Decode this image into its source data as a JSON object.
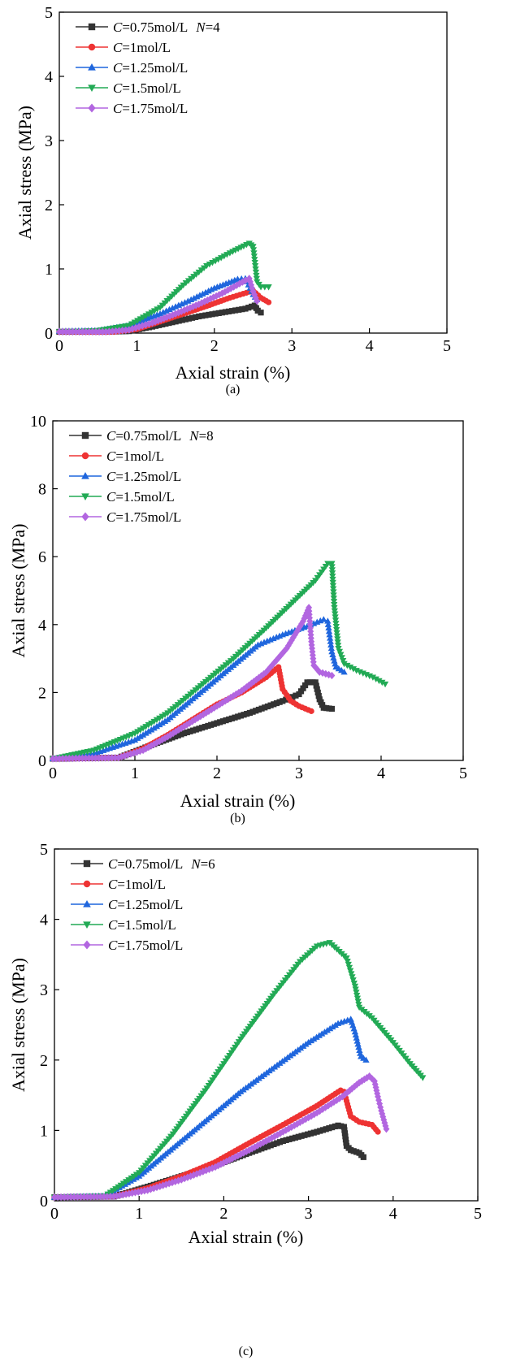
{
  "chart_data": [
    {
      "type": "line",
      "panel_label": "(a)",
      "xlabel": "Axial strain (%)",
      "ylabel": "Axial stress (MPa)",
      "xlim": [
        0,
        5
      ],
      "ylim": [
        0,
        5
      ],
      "xticks": [
        0,
        1,
        2,
        3,
        4,
        5
      ],
      "yticks": [
        0,
        1,
        2,
        3,
        4,
        5
      ],
      "legend_position": "top-left",
      "series": [
        {
          "name": "C=0.75mol/L  N=4",
          "legend": {
            "prefix": "C",
            "value": "=0.75mol/L",
            "extra_prefix": "N",
            "extra_value": "=4"
          },
          "color": "#333333",
          "marker": "square",
          "points": [
            [
              0,
              0.02
            ],
            [
              0.6,
              0.02
            ],
            [
              0.9,
              0.03
            ],
            [
              1.2,
              0.1
            ],
            [
              1.5,
              0.18
            ],
            [
              1.8,
              0.26
            ],
            [
              2.1,
              0.32
            ],
            [
              2.4,
              0.38
            ],
            [
              2.52,
              0.43
            ],
            [
              2.56,
              0.35
            ],
            [
              2.6,
              0.32
            ]
          ]
        },
        {
          "name": "C=1mol/L",
          "legend": {
            "prefix": "C",
            "value": "=1mol/L"
          },
          "color": "#ee3333",
          "marker": "circle",
          "points": [
            [
              0,
              0.02
            ],
            [
              0.7,
              0.02
            ],
            [
              1.0,
              0.06
            ],
            [
              1.3,
              0.18
            ],
            [
              1.6,
              0.3
            ],
            [
              1.9,
              0.42
            ],
            [
              2.2,
              0.55
            ],
            [
              2.5,
              0.66
            ],
            [
              2.6,
              0.55
            ],
            [
              2.7,
              0.48
            ]
          ]
        },
        {
          "name": "C=1.25mol/L",
          "legend": {
            "prefix": "C",
            "value": "=1.25mol/L"
          },
          "color": "#1f66dd",
          "marker": "triangle-up",
          "points": [
            [
              0,
              0.03
            ],
            [
              0.5,
              0.04
            ],
            [
              0.9,
              0.12
            ],
            [
              1.3,
              0.3
            ],
            [
              1.7,
              0.52
            ],
            [
              2.0,
              0.7
            ],
            [
              2.3,
              0.84
            ],
            [
              2.4,
              0.85
            ],
            [
              2.5,
              0.6
            ],
            [
              2.55,
              0.52
            ]
          ]
        },
        {
          "name": "C=1.5mol/L",
          "legend": {
            "prefix": "C",
            "value": "=1.5mol/L"
          },
          "color": "#22aa55",
          "marker": "triangle-down",
          "points": [
            [
              0,
              0.02
            ],
            [
              0.5,
              0.04
            ],
            [
              0.9,
              0.12
            ],
            [
              1.3,
              0.4
            ],
            [
              1.6,
              0.75
            ],
            [
              1.9,
              1.05
            ],
            [
              2.2,
              1.25
            ],
            [
              2.45,
              1.4
            ],
            [
              2.5,
              1.35
            ],
            [
              2.55,
              0.8
            ],
            [
              2.6,
              0.72
            ],
            [
              2.7,
              0.72
            ]
          ]
        },
        {
          "name": "C=1.75mol/L",
          "legend": {
            "prefix": "C",
            "value": "=1.75mol/L"
          },
          "color": "#b266e0",
          "marker": "diamond",
          "points": [
            [
              0,
              0.02
            ],
            [
              0.6,
              0.02
            ],
            [
              0.9,
              0.05
            ],
            [
              1.2,
              0.16
            ],
            [
              1.5,
              0.3
            ],
            [
              1.8,
              0.45
            ],
            [
              2.1,
              0.62
            ],
            [
              2.4,
              0.82
            ],
            [
              2.45,
              0.85
            ],
            [
              2.5,
              0.65
            ],
            [
              2.55,
              0.5
            ]
          ]
        }
      ]
    },
    {
      "type": "line",
      "panel_label": "(b)",
      "xlabel": "Axial strain (%)",
      "ylabel": "Axial stress (MPa)",
      "xlim": [
        0,
        5
      ],
      "ylim": [
        0,
        10
      ],
      "xticks": [
        0,
        1,
        2,
        3,
        4,
        5
      ],
      "yticks": [
        0,
        2,
        4,
        6,
        8,
        10
      ],
      "legend_position": "top-left",
      "series": [
        {
          "name": "C=0.75mol/L  N=8",
          "legend": {
            "prefix": "C",
            "value": "=0.75mol/L",
            "extra_prefix": "N",
            "extra_value": "=8"
          },
          "color": "#333333",
          "marker": "square",
          "points": [
            [
              0,
              0.05
            ],
            [
              0.8,
              0.08
            ],
            [
              1.2,
              0.45
            ],
            [
              1.6,
              0.8
            ],
            [
              2.0,
              1.1
            ],
            [
              2.4,
              1.4
            ],
            [
              2.8,
              1.75
            ],
            [
              3.0,
              1.95
            ],
            [
              3.1,
              2.3
            ],
            [
              3.2,
              2.3
            ],
            [
              3.25,
              1.8
            ],
            [
              3.3,
              1.55
            ],
            [
              3.4,
              1.52
            ]
          ]
        },
        {
          "name": "C=1mol/L",
          "legend": {
            "prefix": "C",
            "value": "=1mol/L"
          },
          "color": "#ee3333",
          "marker": "circle",
          "points": [
            [
              0,
              0.05
            ],
            [
              0.8,
              0.08
            ],
            [
              1.1,
              0.35
            ],
            [
              1.4,
              0.75
            ],
            [
              1.7,
              1.2
            ],
            [
              2.0,
              1.65
            ],
            [
              2.3,
              2.0
            ],
            [
              2.6,
              2.45
            ],
            [
              2.75,
              2.75
            ],
            [
              2.8,
              2.1
            ],
            [
              2.9,
              1.75
            ],
            [
              3.0,
              1.6
            ],
            [
              3.15,
              1.45
            ]
          ]
        },
        {
          "name": "C=1.25mol/L",
          "legend": {
            "prefix": "C",
            "value": "=1.25mol/L"
          },
          "color": "#1f66dd",
          "marker": "triangle-up",
          "points": [
            [
              0,
              0.05
            ],
            [
              0.5,
              0.2
            ],
            [
              1.0,
              0.6
            ],
            [
              1.4,
              1.2
            ],
            [
              1.8,
              2.0
            ],
            [
              2.2,
              2.8
            ],
            [
              2.5,
              3.4
            ],
            [
              2.8,
              3.7
            ],
            [
              3.1,
              3.95
            ],
            [
              3.3,
              4.15
            ],
            [
              3.35,
              4.1
            ],
            [
              3.4,
              3.2
            ],
            [
              3.45,
              2.75
            ],
            [
              3.55,
              2.6
            ]
          ]
        },
        {
          "name": "C=1.5mol/L",
          "legend": {
            "prefix": "C",
            "value": "=1.5mol/L"
          },
          "color": "#22aa55",
          "marker": "triangle-down",
          "points": [
            [
              0,
              0.05
            ],
            [
              0.5,
              0.3
            ],
            [
              1.0,
              0.8
            ],
            [
              1.4,
              1.4
            ],
            [
              1.8,
              2.2
            ],
            [
              2.2,
              3.0
            ],
            [
              2.6,
              3.9
            ],
            [
              2.9,
              4.6
            ],
            [
              3.2,
              5.3
            ],
            [
              3.35,
              5.8
            ],
            [
              3.4,
              5.8
            ],
            [
              3.43,
              4.5
            ],
            [
              3.48,
              3.3
            ],
            [
              3.55,
              2.85
            ],
            [
              3.7,
              2.65
            ],
            [
              3.9,
              2.45
            ],
            [
              4.05,
              2.25
            ]
          ]
        },
        {
          "name": "C=1.75mol/L",
          "legend": {
            "prefix": "C",
            "value": "=1.75mol/L"
          },
          "color": "#b266e0",
          "marker": "diamond",
          "points": [
            [
              0,
              0.05
            ],
            [
              0.8,
              0.08
            ],
            [
              1.1,
              0.3
            ],
            [
              1.4,
              0.7
            ],
            [
              1.7,
              1.15
            ],
            [
              2.0,
              1.6
            ],
            [
              2.3,
              2.05
            ],
            [
              2.6,
              2.6
            ],
            [
              2.85,
              3.3
            ],
            [
              3.05,
              4.1
            ],
            [
              3.12,
              4.5
            ],
            [
              3.15,
              3.5
            ],
            [
              3.18,
              2.8
            ],
            [
              3.25,
              2.6
            ],
            [
              3.4,
              2.5
            ]
          ]
        }
      ]
    },
    {
      "type": "line",
      "panel_label": "(c)",
      "xlabel": "Axial strain (%)",
      "ylabel": "Axial stress (MPa)",
      "xlim": [
        0,
        5
      ],
      "ylim": [
        0,
        5
      ],
      "xticks": [
        0,
        1,
        2,
        3,
        4,
        5
      ],
      "yticks": [
        0,
        1,
        2,
        3,
        4,
        5
      ],
      "legend_position": "top-left",
      "series": [
        {
          "name": "C=0.75mol/L  N=6",
          "legend": {
            "prefix": "C",
            "value": "=0.75mol/L",
            "extra_prefix": "N",
            "extra_value": "=6"
          },
          "color": "#333333",
          "marker": "square",
          "points": [
            [
              0,
              0.05
            ],
            [
              0.7,
              0.06
            ],
            [
              1.1,
              0.2
            ],
            [
              1.5,
              0.35
            ],
            [
              1.9,
              0.5
            ],
            [
              2.3,
              0.68
            ],
            [
              2.7,
              0.85
            ],
            [
              3.1,
              0.98
            ],
            [
              3.35,
              1.07
            ],
            [
              3.42,
              1.05
            ],
            [
              3.45,
              0.78
            ],
            [
              3.5,
              0.72
            ],
            [
              3.6,
              0.68
            ],
            [
              3.65,
              0.62
            ]
          ]
        },
        {
          "name": "C=1mol/L",
          "legend": {
            "prefix": "C",
            "value": "=1mol/L"
          },
          "color": "#ee3333",
          "marker": "circle",
          "points": [
            [
              0,
              0.05
            ],
            [
              0.7,
              0.06
            ],
            [
              1.1,
              0.18
            ],
            [
              1.5,
              0.35
            ],
            [
              1.9,
              0.55
            ],
            [
              2.3,
              0.82
            ],
            [
              2.7,
              1.08
            ],
            [
              3.1,
              1.35
            ],
            [
              3.38,
              1.57
            ],
            [
              3.42,
              1.55
            ],
            [
              3.5,
              1.2
            ],
            [
              3.6,
              1.12
            ],
            [
              3.75,
              1.08
            ],
            [
              3.82,
              0.98
            ]
          ]
        },
        {
          "name": "C=1.25mol/L",
          "legend": {
            "prefix": "C",
            "value": "=1.25mol/L"
          },
          "color": "#1f66dd",
          "marker": "triangle-up",
          "points": [
            [
              0,
              0.05
            ],
            [
              0.6,
              0.07
            ],
            [
              1.0,
              0.35
            ],
            [
              1.4,
              0.75
            ],
            [
              1.8,
              1.15
            ],
            [
              2.2,
              1.55
            ],
            [
              2.6,
              1.9
            ],
            [
              3.0,
              2.25
            ],
            [
              3.35,
              2.52
            ],
            [
              3.5,
              2.58
            ],
            [
              3.55,
              2.4
            ],
            [
              3.62,
              2.05
            ],
            [
              3.68,
              2.0
            ]
          ]
        },
        {
          "name": "C=1.5mol/L",
          "legend": {
            "prefix": "C",
            "value": "=1.5mol/L"
          },
          "color": "#22aa55",
          "marker": "triangle-down",
          "points": [
            [
              0,
              0.05
            ],
            [
              0.6,
              0.07
            ],
            [
              1.0,
              0.4
            ],
            [
              1.4,
              0.95
            ],
            [
              1.8,
              1.6
            ],
            [
              2.2,
              2.3
            ],
            [
              2.6,
              2.95
            ],
            [
              2.9,
              3.4
            ],
            [
              3.1,
              3.62
            ],
            [
              3.25,
              3.67
            ],
            [
              3.45,
              3.45
            ],
            [
              3.55,
              3.05
            ],
            [
              3.6,
              2.75
            ],
            [
              3.75,
              2.6
            ],
            [
              4.0,
              2.25
            ],
            [
              4.2,
              1.95
            ],
            [
              4.35,
              1.75
            ]
          ]
        },
        {
          "name": "C=1.75mol/L",
          "legend": {
            "prefix": "C",
            "value": "=1.75mol/L"
          },
          "color": "#b266e0",
          "marker": "diamond",
          "points": [
            [
              0,
              0.05
            ],
            [
              0.7,
              0.06
            ],
            [
              1.1,
              0.15
            ],
            [
              1.5,
              0.3
            ],
            [
              1.9,
              0.48
            ],
            [
              2.3,
              0.72
            ],
            [
              2.7,
              0.98
            ],
            [
              3.1,
              1.25
            ],
            [
              3.4,
              1.48
            ],
            [
              3.6,
              1.68
            ],
            [
              3.72,
              1.77
            ],
            [
              3.78,
              1.7
            ],
            [
              3.82,
              1.48
            ],
            [
              3.86,
              1.28
            ],
            [
              3.92,
              1.02
            ]
          ]
        }
      ]
    }
  ]
}
